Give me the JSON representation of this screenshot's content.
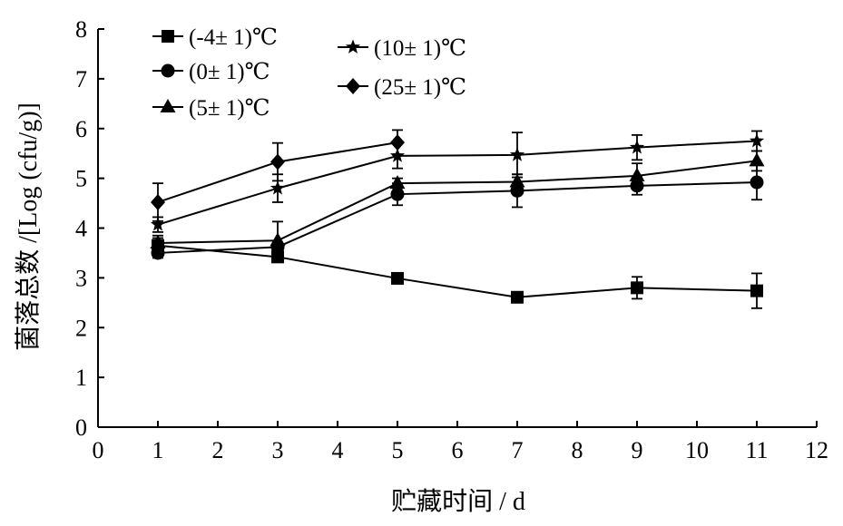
{
  "chart_data": {
    "type": "line",
    "xlabel": "贮藏时间 / d",
    "ylabel": "菌落总数 /[Log (cfu/g)]",
    "xlim": [
      0,
      12
    ],
    "ylim": [
      0,
      8
    ],
    "xticks": [
      "0",
      "1",
      "2",
      "3",
      "4",
      "5",
      "6",
      "7",
      "8",
      "9",
      "10",
      "11",
      "12"
    ],
    "yticks": [
      "0",
      "1",
      "2",
      "3",
      "4",
      "5",
      "6",
      "7",
      "8"
    ],
    "grid": false,
    "legend_position": "top-left",
    "series": [
      {
        "name": "(-4± 1)℃",
        "marker": "square",
        "points": [
          {
            "x": 1,
            "y": 3.65,
            "err": 0.15
          },
          {
            "x": 3,
            "y": 3.42,
            "err": 0.05
          },
          {
            "x": 5,
            "y": 2.99,
            "err": 0.06
          },
          {
            "x": 7,
            "y": 2.61,
            "err": 0.06
          },
          {
            "x": 9,
            "y": 2.8,
            "err": 0.22
          },
          {
            "x": 11,
            "y": 2.74,
            "err": 0.35
          }
        ]
      },
      {
        "name": "(0± 1)℃",
        "marker": "circle",
        "points": [
          {
            "x": 1,
            "y": 3.5,
            "err": 0.1
          },
          {
            "x": 3,
            "y": 3.62,
            "err": 0.1
          },
          {
            "x": 5,
            "y": 4.68,
            "err": 0.22
          },
          {
            "x": 7,
            "y": 4.75,
            "err": 0.33
          },
          {
            "x": 9,
            "y": 4.85,
            "err": 0.18
          },
          {
            "x": 11,
            "y": 4.92,
            "err": 0.35
          }
        ]
      },
      {
        "name": "(5± 1)℃",
        "marker": "triangle",
        "points": [
          {
            "x": 1,
            "y": 3.7,
            "err": 0.15
          },
          {
            "x": 3,
            "y": 3.75,
            "err": 0.38
          },
          {
            "x": 5,
            "y": 4.9,
            "err": 0.1
          },
          {
            "x": 7,
            "y": 4.93,
            "err": 0.15
          },
          {
            "x": 9,
            "y": 5.05,
            "err": 0.25
          },
          {
            "x": 11,
            "y": 5.35,
            "err": 0.2
          }
        ]
      },
      {
        "name": "(10± 1)℃",
        "marker": "star",
        "points": [
          {
            "x": 1,
            "y": 4.07,
            "err": 0.15
          },
          {
            "x": 3,
            "y": 4.8,
            "err": 0.28
          },
          {
            "x": 5,
            "y": 5.45,
            "err": 0.25
          },
          {
            "x": 7,
            "y": 5.47,
            "err": 0.45
          },
          {
            "x": 9,
            "y": 5.62,
            "err": 0.25
          },
          {
            "x": 11,
            "y": 5.75,
            "err": 0.2
          }
        ]
      },
      {
        "name": "(25± 1)℃",
        "marker": "diamond",
        "points": [
          {
            "x": 1,
            "y": 4.52,
            "err": 0.38
          },
          {
            "x": 3,
            "y": 5.33,
            "err": 0.38
          },
          {
            "x": 5,
            "y": 5.72,
            "err": 0.25
          }
        ]
      }
    ]
  }
}
